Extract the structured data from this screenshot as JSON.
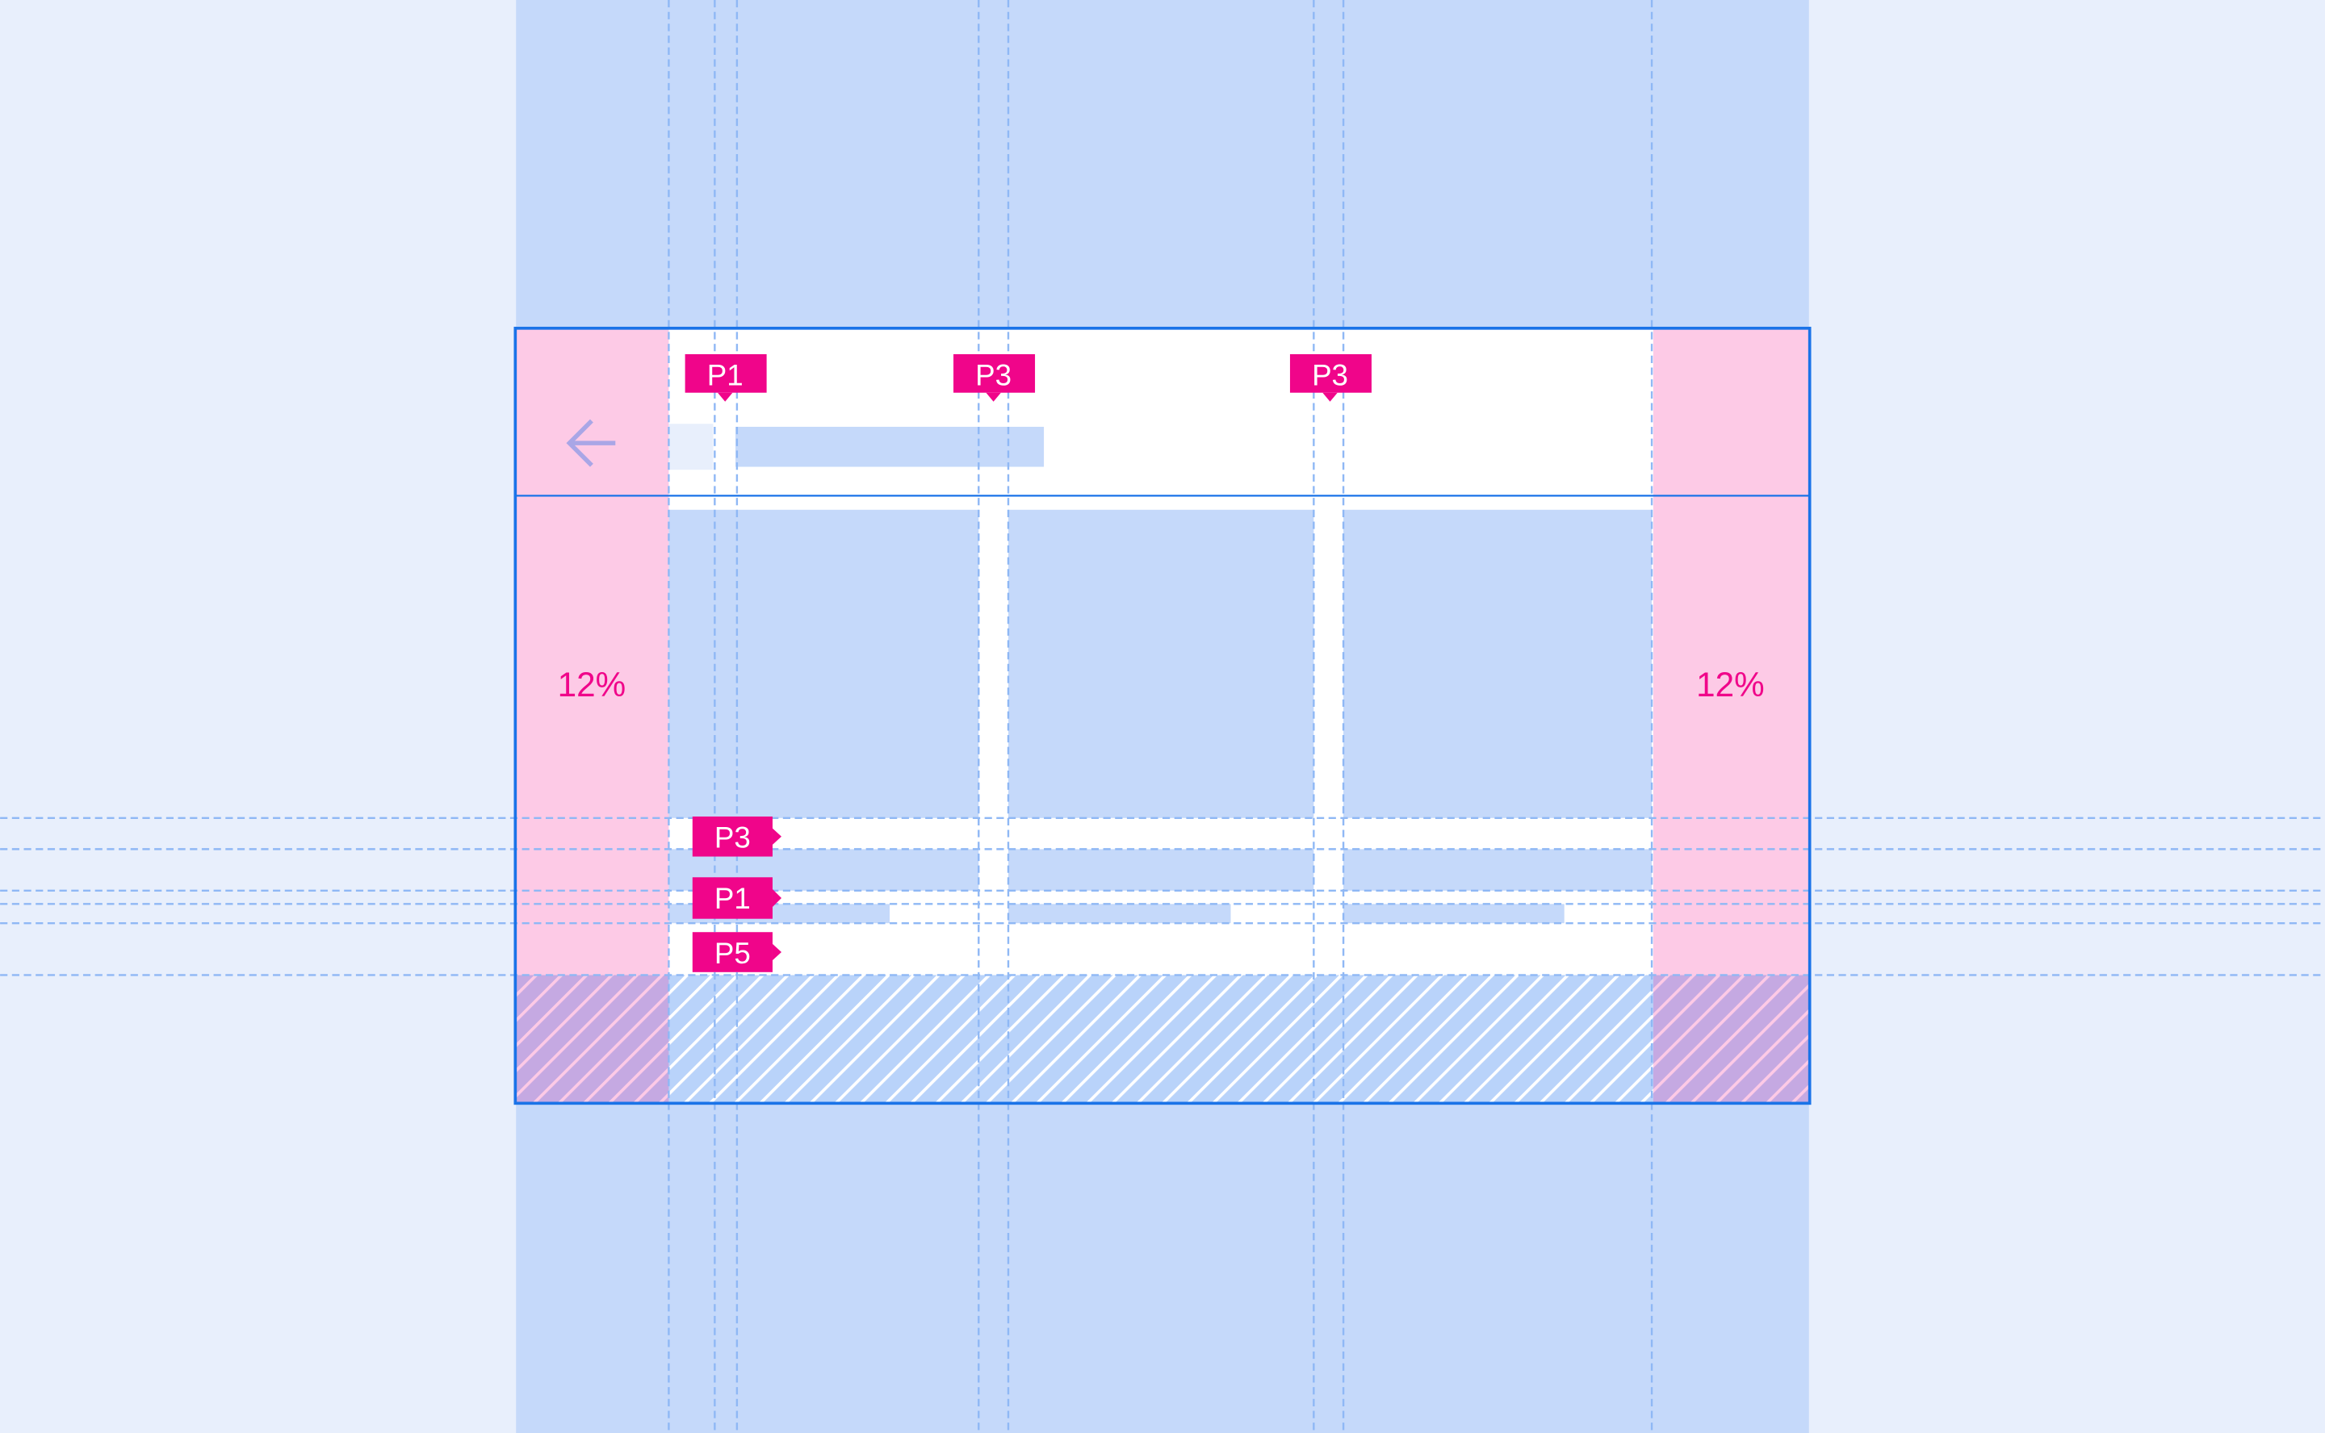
{
  "colors": {
    "background": "#e8effc",
    "column": "#c5d9fa",
    "frame": "#1a73e8",
    "margin": "#fdcae6",
    "tag": "#f0058a",
    "guide": "#8fb8f5",
    "icon": "#a9a6e6"
  },
  "header": {
    "back_icon": "arrow-left-icon"
  },
  "margins": {
    "left_label": "12%",
    "right_label": "12%"
  },
  "top_tags": [
    {
      "label": "P1"
    },
    {
      "label": "P3"
    },
    {
      "label": "P3"
    }
  ],
  "side_tags": [
    {
      "label": "P3"
    },
    {
      "label": "P1"
    },
    {
      "label": "P5"
    }
  ],
  "cards": [
    {
      "id": 1
    },
    {
      "id": 2
    },
    {
      "id": 3
    }
  ]
}
